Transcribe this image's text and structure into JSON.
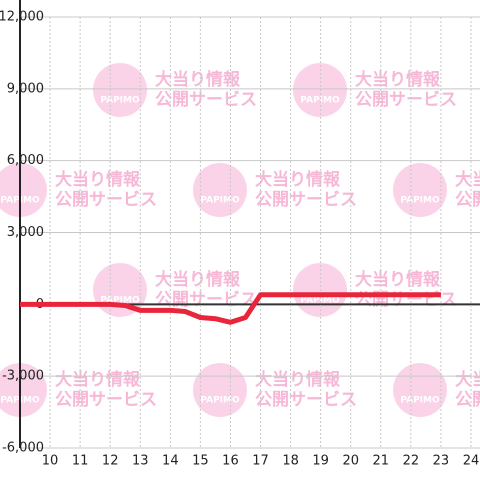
{
  "chart_data": {
    "type": "line",
    "x": [
      9,
      10,
      11,
      12,
      12.5,
      13,
      14,
      14.5,
      15,
      15.5,
      16,
      16.5,
      17,
      18,
      19,
      20,
      21,
      22,
      23
    ],
    "series": [
      {
        "color": "#e8253a",
        "values": [
          0,
          0,
          0,
          0,
          -50,
          -250,
          -250,
          -300,
          -550,
          -600,
          -750,
          -550,
          400,
          400,
          400,
          400,
          400,
          400,
          400
        ]
      }
    ],
    "xlim": [
      9,
      24.3
    ],
    "xticks": [
      10,
      11,
      12,
      13,
      14,
      15,
      16,
      17,
      18,
      19,
      20,
      21,
      22,
      23,
      24
    ],
    "ylim": [
      -6000,
      12000
    ],
    "yticks": [
      {
        "value": -6000,
        "label": "-6,000"
      },
      {
        "value": -3000,
        "label": "-3,000"
      },
      0,
      {
        "value": 3000,
        "label": "3,000"
      },
      {
        "value": 6000,
        "label": "6,000"
      },
      {
        "value": 9000,
        "label": "9,000"
      },
      {
        "value": 12000,
        "label": "12,000"
      }
    ],
    "grid": true
  },
  "watermark": {
    "logo": "PAPIMO",
    "line_1": "大当り情報",
    "line_2": "公開サービス"
  }
}
